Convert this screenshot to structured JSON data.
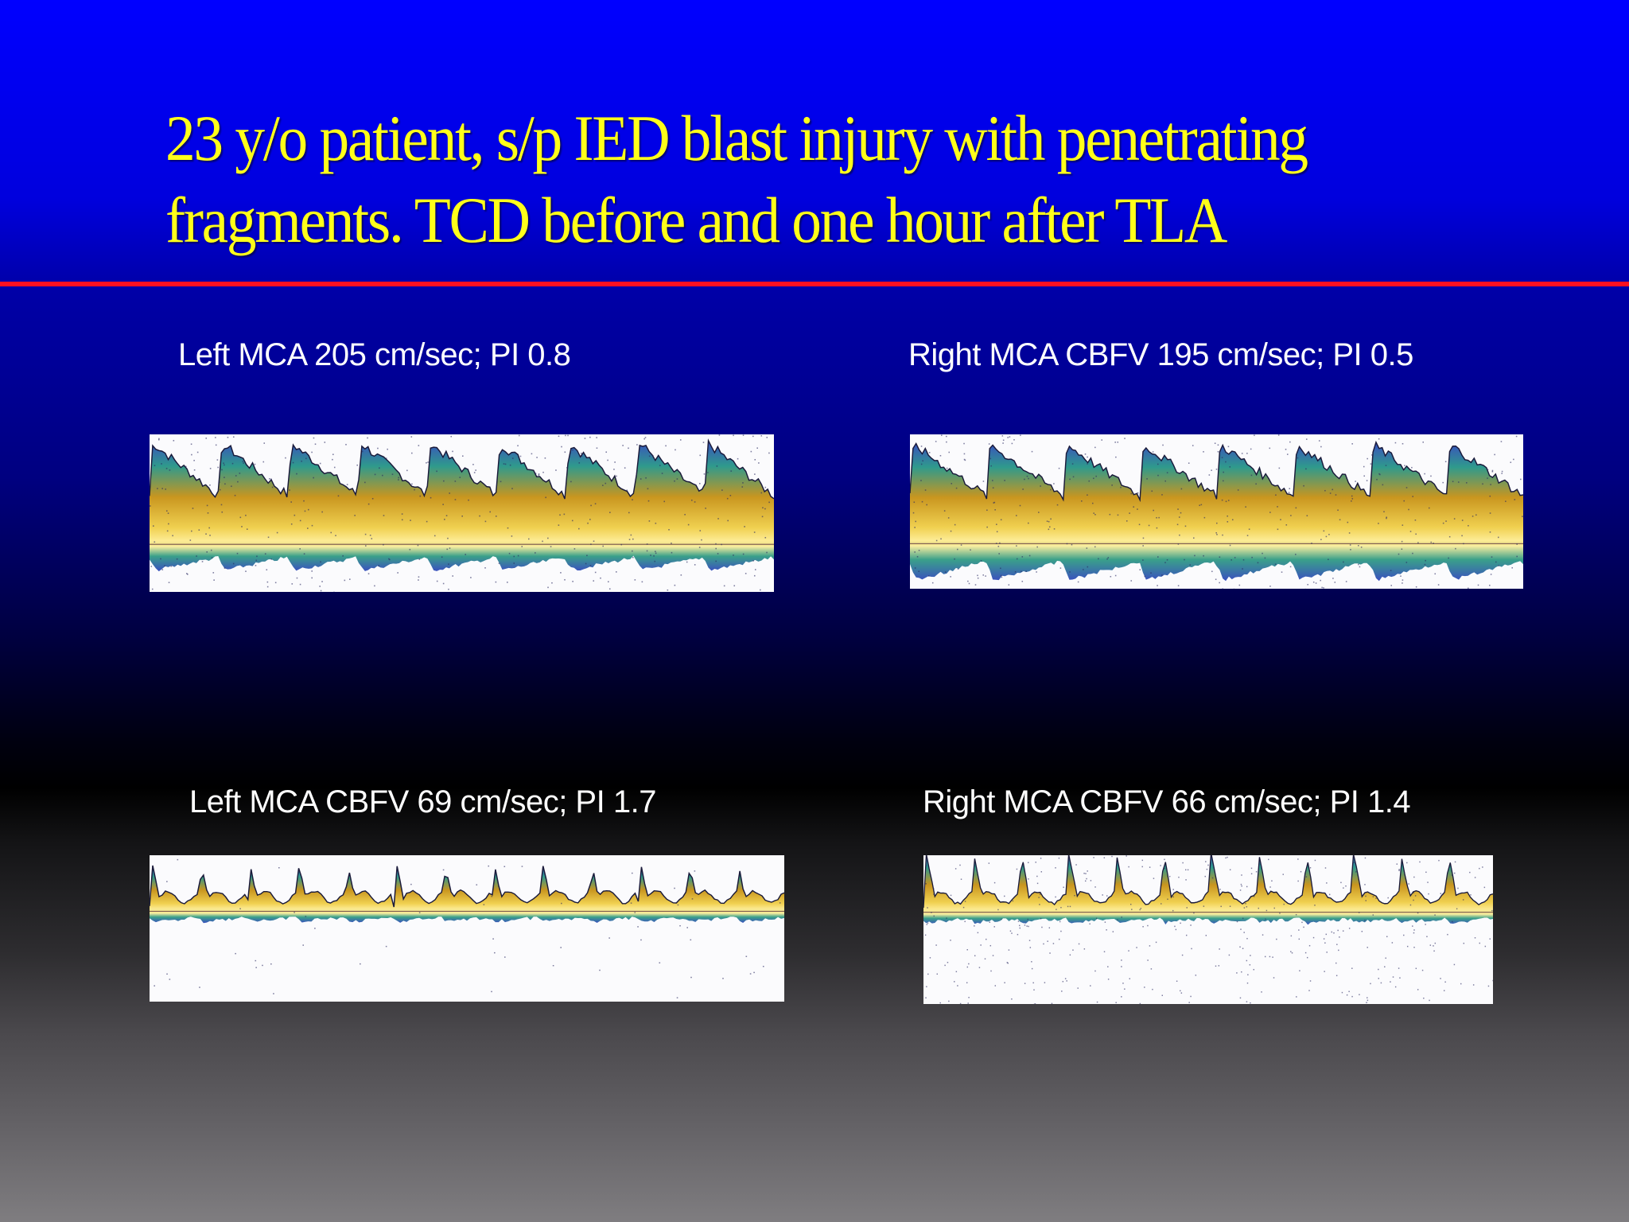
{
  "slide": {
    "title": "23 y/o patient, s/p IED blast injury with penetrating fragments. TCD before and one hour after TLA",
    "colors": {
      "title_text": "#ffff1a",
      "caption_text": "#ffffff",
      "divider": "#ff1020",
      "background_top": "#0000ff",
      "background_middle": "#000000",
      "background_bottom": "#7f7d80"
    }
  },
  "panels": [
    {
      "position": "top-left",
      "caption": "Left MCA 205 cm/sec; PI 0.8",
      "image": "TCD Doppler spectral waveform (before TLA, left MCA)",
      "cycles": 9
    },
    {
      "position": "top-right",
      "caption": "Right MCA CBFV 195 cm/sec; PI 0.5",
      "image": "TCD Doppler spectral waveform (before TLA, right MCA)",
      "cycles": 8
    },
    {
      "position": "bottom-left",
      "caption": "Left MCA CBFV 69 cm/sec; PI 1.7",
      "image": "TCD Doppler spectral waveform (after TLA, left MCA)",
      "cycles": 13
    },
    {
      "position": "bottom-right",
      "caption": "Right MCA CBFV 66 cm/sec; PI 1.4",
      "image": "TCD Doppler spectral waveform (after TLA, right MCA)",
      "cycles": 12
    }
  ]
}
